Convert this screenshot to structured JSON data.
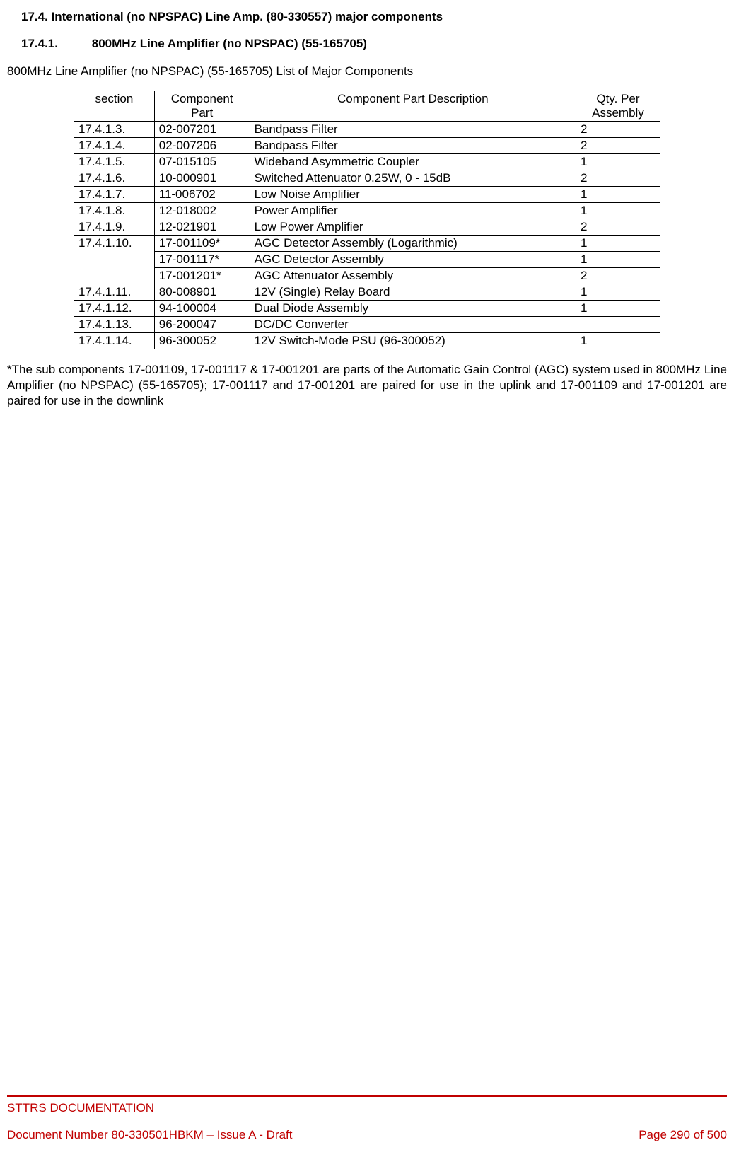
{
  "headings": {
    "h1": "17.4. International (no NPSPAC) Line Amp. (80-330557) major components",
    "h2_num": "17.4.1.",
    "h2_title": "800MHz Line Amplifier (no NPSPAC) (55-165705)"
  },
  "intro": "800MHz Line Amplifier (no NPSPAC) (55-165705) List of Major Components",
  "table": {
    "headers": {
      "section": "section",
      "part": "Component Part",
      "desc": "Component Part Description",
      "qty": "Qty. Per Assembly"
    },
    "rows": [
      {
        "section": "17.4.1.3.",
        "part": "02-007201",
        "desc": "Bandpass Filter",
        "qty": "2"
      },
      {
        "section": "17.4.1.4.",
        "part": "02-007206",
        "desc": "Bandpass Filter",
        "qty": "2"
      },
      {
        "section": "17.4.1.5.",
        "part": "07-015105",
        "desc": "Wideband Asymmetric Coupler",
        "qty": "1"
      },
      {
        "section": "17.4.1.6.",
        "part": "10-000901",
        "desc": "Switched Attenuator 0.25W, 0 - 15dB",
        "qty": "2"
      },
      {
        "section": "17.4.1.7.",
        "part": "11-006702",
        "desc": "Low Noise Amplifier",
        "qty": "1"
      },
      {
        "section": "17.4.1.8.",
        "part": "12-018002",
        "desc": "Power Amplifier",
        "qty": "1"
      },
      {
        "section": "17.4.1.9.",
        "part": "12-021901",
        "desc": "Low Power Amplifier",
        "qty": "2"
      },
      {
        "section": "17.4.1.10.",
        "part": "17-001109*",
        "desc": "AGC Detector Assembly (Logarithmic)",
        "qty": "1"
      },
      {
        "section": "",
        "part": "17-001117*",
        "desc": "AGC Detector Assembly",
        "qty": "1"
      },
      {
        "section": "",
        "part": "17-001201*",
        "desc": "AGC Attenuator Assembly",
        "qty": "2"
      },
      {
        "section": "17.4.1.11.",
        "part": "80-008901",
        "desc": "12V (Single) Relay Board",
        "qty": "1"
      },
      {
        "section": "17.4.1.12.",
        "part": "94-100004",
        "desc": "Dual Diode Assembly",
        "qty": "1"
      },
      {
        "section": "17.4.1.13.",
        "part": "96-200047",
        "desc": "DC/DC Converter",
        "qty": ""
      },
      {
        "section": "17.4.1.14.",
        "part": "96-300052",
        "desc": "12V Switch-Mode PSU (96-300052)",
        "qty": "1"
      }
    ]
  },
  "footnote": "*The sub components 17-001109, 17-001117 & 17-001201 are parts of the Automatic Gain Control (AGC) system used in 800MHz Line Amplifier (no NPSPAC) (55-165705); 17-001117 and 17-001201 are paired for use in the uplink and 17-001109 and 17-001201 are paired for use in the downlink",
  "footer": {
    "doc_title": "STTRS DOCUMENTATION",
    "doc_number": "Document Number 80-330501HBKM – Issue A - Draft",
    "page": "Page 290 of 500"
  },
  "colors": {
    "red": "#c00000",
    "text": "#000000",
    "bg": "#ffffff",
    "border": "#000000"
  }
}
